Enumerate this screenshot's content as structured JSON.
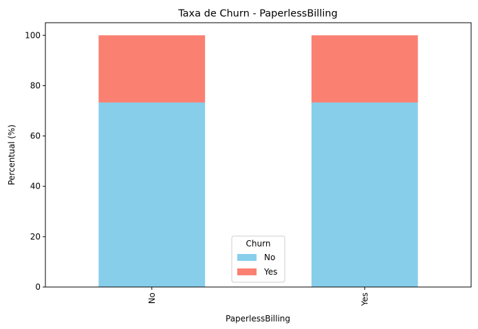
{
  "chart_data": {
    "type": "bar",
    "stacked": true,
    "title": "Taxa de Churn - PaperlessBilling",
    "xlabel": "PaperlessBilling",
    "ylabel": "Percentual (%)",
    "categories": [
      "No",
      "Yes"
    ],
    "ylim": [
      0,
      105
    ],
    "yticks": [
      0,
      20,
      40,
      60,
      80,
      100
    ],
    "grid": false,
    "legend": {
      "title": "Churn",
      "placement": "lower-center"
    },
    "series": [
      {
        "name": "No",
        "color": "#87CEEB",
        "values": [
          73.3,
          73.3
        ]
      },
      {
        "name": "Yes",
        "color": "#FA8072",
        "values": [
          26.7,
          26.7
        ]
      }
    ]
  }
}
